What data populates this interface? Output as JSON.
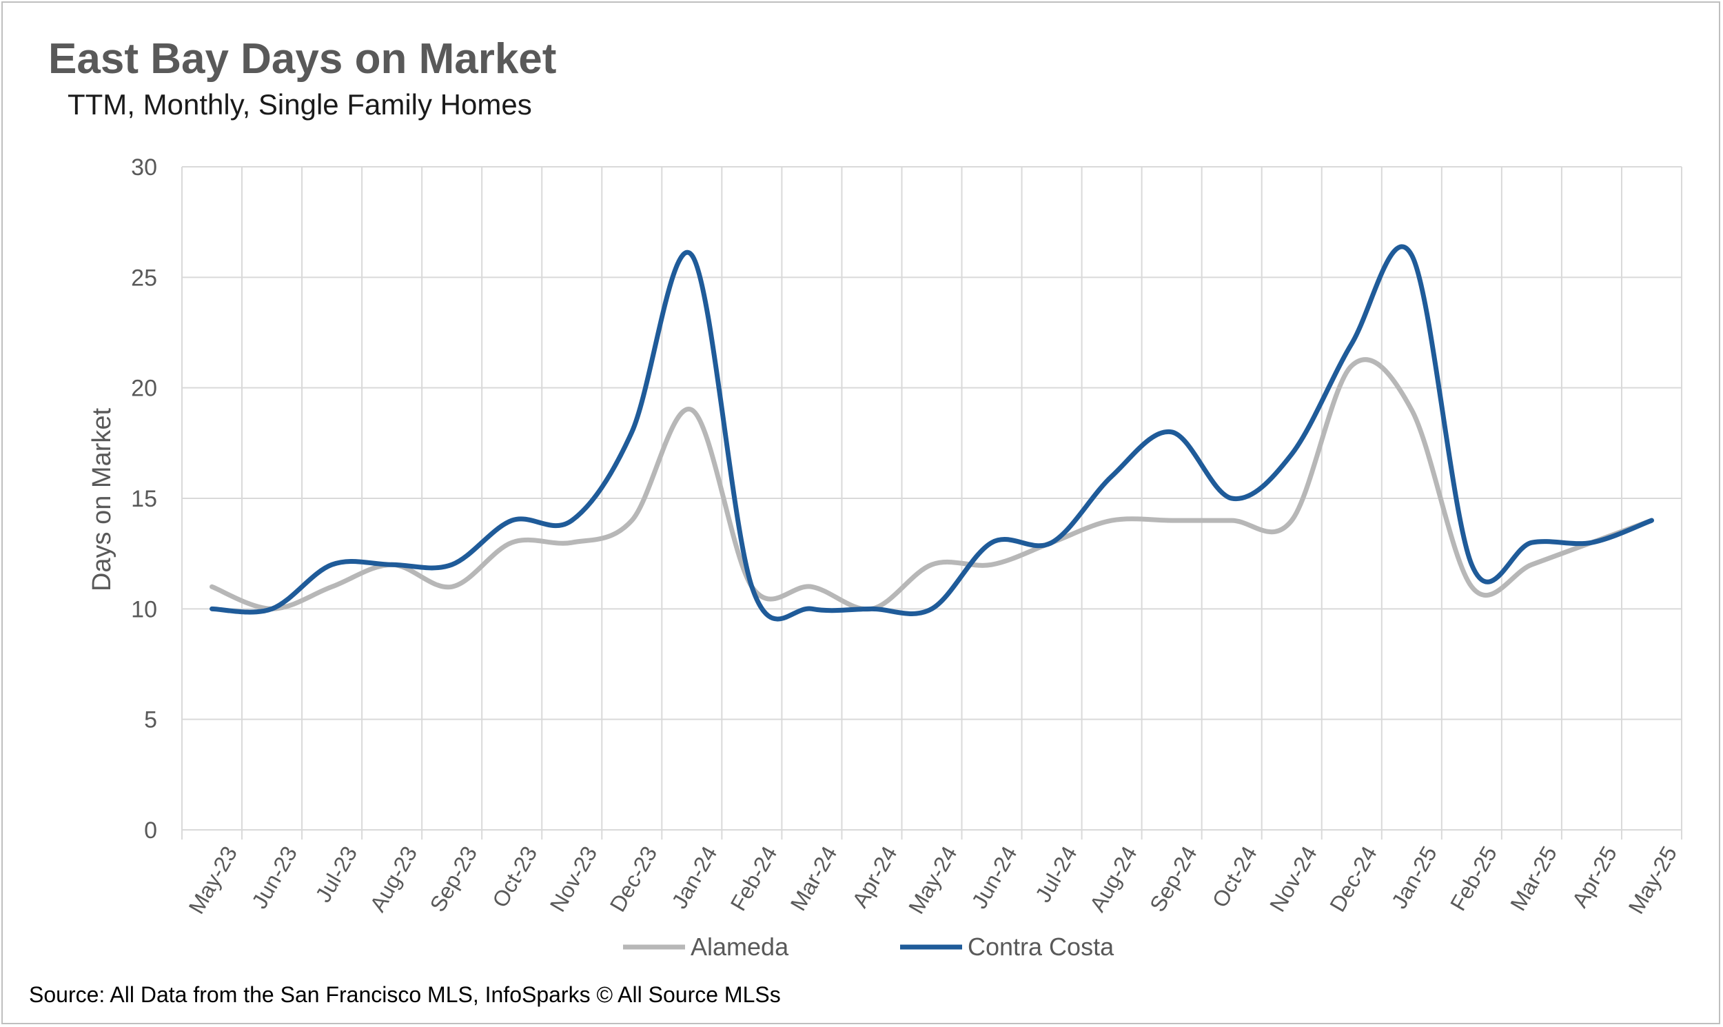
{
  "title": "East Bay Days on Market",
  "subtitle": "TTM, Monthly, Single Family Homes",
  "source": "Source: All Data from the San Francisco MLS, InfoSparks © All Source MLSs",
  "colors": {
    "alameda": "#b7b7b7",
    "contra_costa": "#1f5b99",
    "grid": "#d9d9d9",
    "text": "#595959"
  },
  "chart_data": {
    "type": "line",
    "title": "East Bay Days on Market",
    "subtitle": "TTM, Monthly, Single Family Homes",
    "xlabel": "",
    "ylabel": "Days on Market",
    "ylim": [
      0,
      30
    ],
    "yticks": [
      0,
      5,
      10,
      15,
      20,
      25,
      30
    ],
    "grid": true,
    "legend": "bottom",
    "categories": [
      "May-23",
      "Jun-23",
      "Jul-23",
      "Aug-23",
      "Sep-23",
      "Oct-23",
      "Nov-23",
      "Dec-23",
      "Jan-24",
      "Feb-24",
      "Mar-24",
      "Apr-24",
      "May-24",
      "Jun-24",
      "Jul-24",
      "Aug-24",
      "Sep-24",
      "Oct-24",
      "Nov-24",
      "Dec-24",
      "Jan-25",
      "Feb-25",
      "Mar-25",
      "Apr-25",
      "May-25"
    ],
    "series": [
      {
        "name": "Alameda",
        "color": "#b7b7b7",
        "values": [
          11,
          10,
          11,
          12,
          11,
          13,
          13,
          14,
          19,
          11,
          11,
          10,
          12,
          12,
          13,
          14,
          14,
          14,
          14,
          21,
          19,
          11,
          12,
          13,
          14
        ]
      },
      {
        "name": "Contra Costa",
        "color": "#1f5b99",
        "values": [
          10,
          10,
          12,
          12,
          12,
          14,
          14,
          18,
          26,
          11,
          10,
          10,
          10,
          13,
          13,
          16,
          18,
          15,
          17,
          22,
          26,
          12,
          13,
          13,
          14
        ]
      }
    ]
  }
}
